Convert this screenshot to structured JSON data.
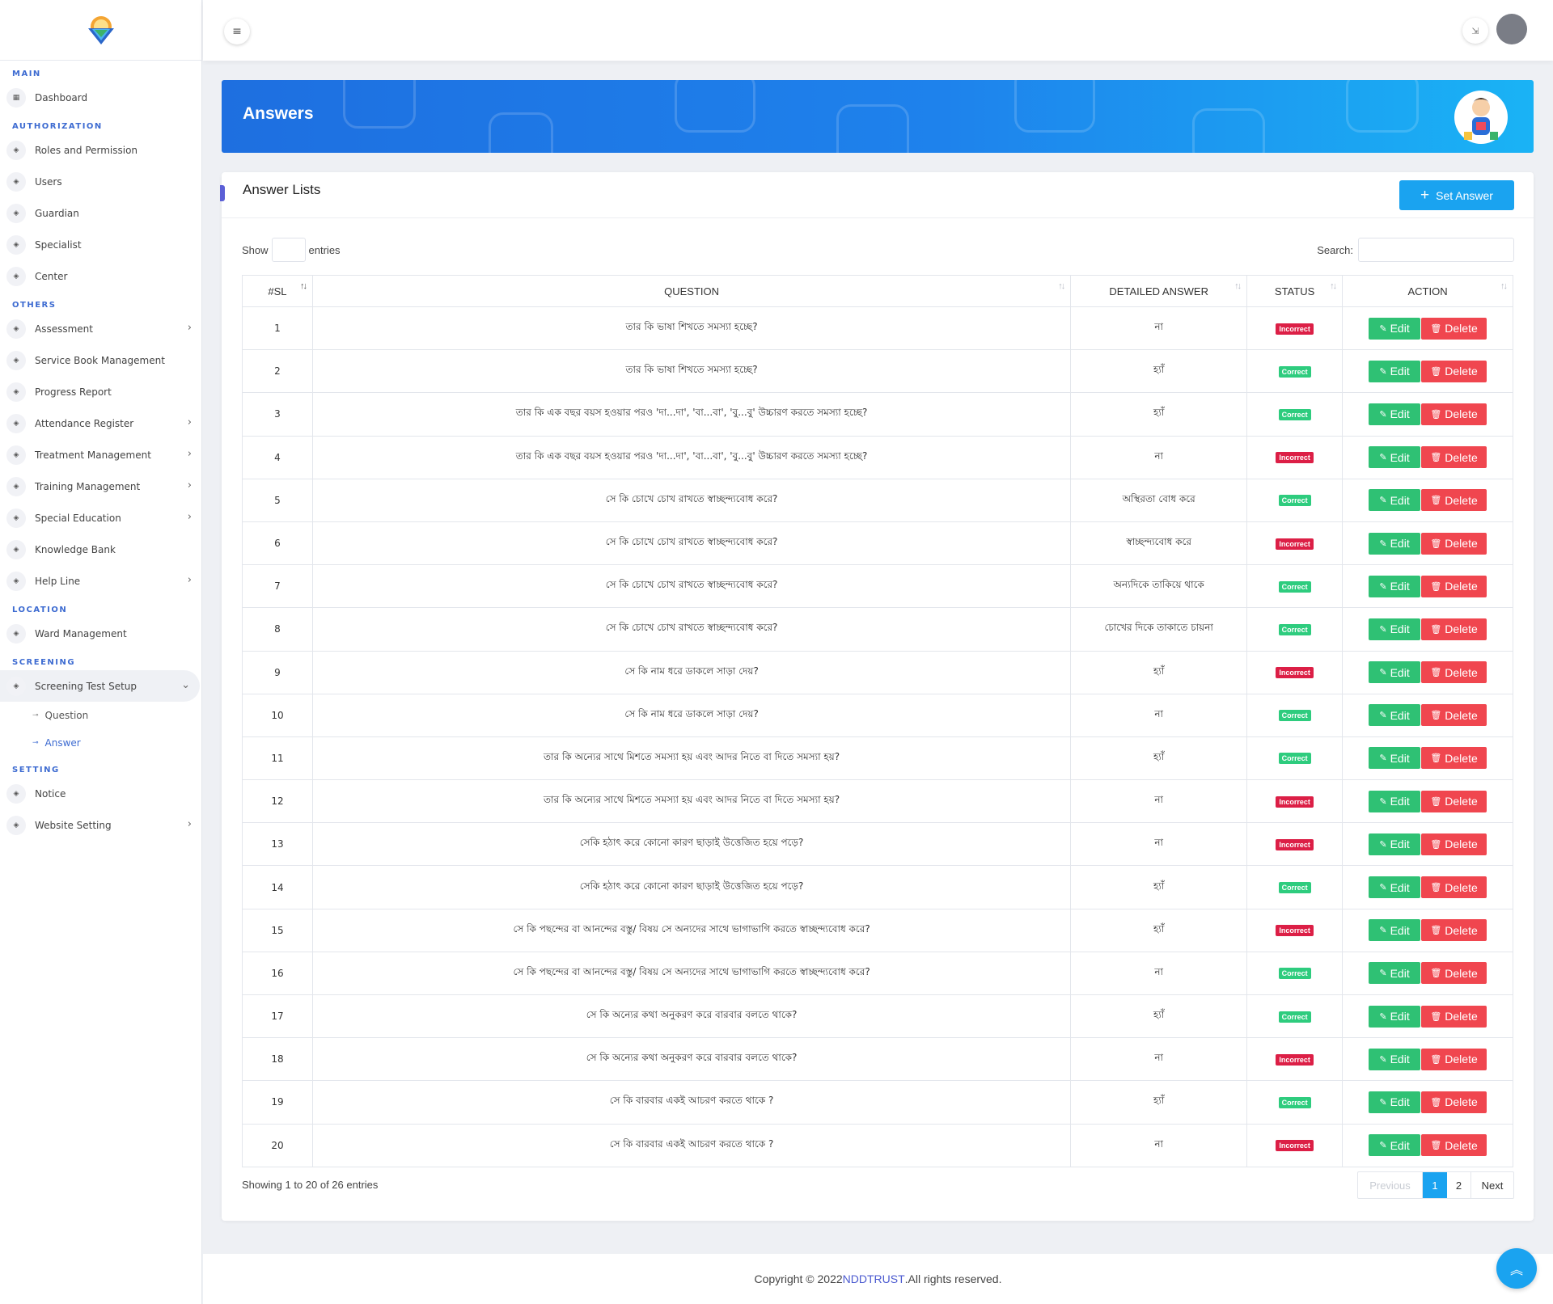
{
  "sidebar": {
    "sections": [
      {
        "title": "MAIN",
        "items": [
          {
            "label": "Dashboard",
            "icon": "grid-icon",
            "chevron": false
          }
        ]
      },
      {
        "title": "AUTHORIZATION",
        "items": [
          {
            "label": "Roles and Permission",
            "icon": "layers-icon",
            "chevron": false
          },
          {
            "label": "Users",
            "icon": "layers-icon",
            "chevron": false
          },
          {
            "label": "Guardian",
            "icon": "layers-icon",
            "chevron": false
          },
          {
            "label": "Specialist",
            "icon": "layers-icon",
            "chevron": false
          },
          {
            "label": "Center",
            "icon": "layers-icon",
            "chevron": false
          }
        ]
      },
      {
        "title": "OTHERS",
        "items": [
          {
            "label": "Assessment",
            "icon": "layers-icon",
            "chevron": true
          },
          {
            "label": "Service Book Management",
            "icon": "layers-icon",
            "chevron": false
          },
          {
            "label": "Progress Report",
            "icon": "layers-icon",
            "chevron": false
          },
          {
            "label": "Attendance Register",
            "icon": "layers-icon",
            "chevron": true
          },
          {
            "label": "Treatment Management",
            "icon": "layers-icon",
            "chevron": true
          },
          {
            "label": "Training Management",
            "icon": "layers-icon",
            "chevron": true
          },
          {
            "label": "Special Education",
            "icon": "layers-icon",
            "chevron": true
          },
          {
            "label": "Knowledge Bank",
            "icon": "layers-icon",
            "chevron": false
          },
          {
            "label": "Help Line",
            "icon": "layers-icon",
            "chevron": true
          }
        ]
      },
      {
        "title": "LOCATION",
        "items": [
          {
            "label": "Ward Management",
            "icon": "layers-icon",
            "chevron": false
          }
        ]
      },
      {
        "title": "SCREENING",
        "items": [
          {
            "label": "Screening Test Setup",
            "icon": "layers-icon",
            "chevron": true,
            "expanded": true,
            "active": true,
            "children": [
              {
                "label": "Question",
                "active": false
              },
              {
                "label": "Answer",
                "active": true
              }
            ]
          }
        ]
      },
      {
        "title": "SETTING",
        "items": [
          {
            "label": "Notice",
            "icon": "layers-icon",
            "chevron": false
          },
          {
            "label": "Website Setting",
            "icon": "layers-icon",
            "chevron": true
          }
        ]
      }
    ]
  },
  "banner": {
    "title": "Answers"
  },
  "card": {
    "title": "Answer Lists",
    "set_answer_label": "Set Answer",
    "show_label": "Show",
    "entries_label": "entries",
    "search_label": "Search:"
  },
  "table": {
    "headers": {
      "sl": "#SL",
      "question": "QUESTION",
      "answer": "DETAILED ANSWER",
      "status": "STATUS",
      "action": "ACTION"
    },
    "edit_label": "Edit",
    "delete_label": "Delete",
    "rows": [
      {
        "sl": "1",
        "question": "তার কি ভাষা শিখতে সমস্যা হচ্ছে?",
        "answer": "না",
        "status": "Incorrect"
      },
      {
        "sl": "2",
        "question": "তার কি ভাষা শিখতে সমস্যা হচ্ছে?",
        "answer": "হ্যাঁ",
        "status": "Correct"
      },
      {
        "sl": "3",
        "question": "তার কি এক বছর বয়স হওয়ার পরও 'দা...দা', 'বা...বা', 'বু...বু' উচ্চারণ করতে সমস্যা হচ্ছে?",
        "answer": "হ্যাঁ",
        "status": "Correct"
      },
      {
        "sl": "4",
        "question": "তার কি এক বছর বয়স হওয়ার পরও 'দা...দা', 'বা...বা', 'বু...বু' উচ্চারণ করতে সমস্যা হচ্ছে?",
        "answer": "না",
        "status": "Incorrect"
      },
      {
        "sl": "5",
        "question": "সে কি চোখে চোখ রাখতে স্বাচ্ছন্দ্যবোধ করে?",
        "answer": "অস্থিরতা বোধ করে",
        "status": "Correct"
      },
      {
        "sl": "6",
        "question": "সে কি চোখে চোখ রাখতে স্বাচ্ছন্দ্যবোধ করে?",
        "answer": "স্বাচ্ছন্দ্যবোধ করে",
        "status": "Incorrect"
      },
      {
        "sl": "7",
        "question": "সে কি চোখে চোখ রাখতে স্বাচ্ছন্দ্যবোধ করে?",
        "answer": "অন্যদিকে তাকিয়ে থাকে",
        "status": "Correct"
      },
      {
        "sl": "8",
        "question": "সে কি চোখে চোখ রাখতে স্বাচ্ছন্দ্যবোধ করে?",
        "answer": "চোখের দিকে তাকাতে চায়না",
        "status": "Correct"
      },
      {
        "sl": "9",
        "question": "সে কি নাম ধরে ডাকলে সাড়া দেয়?",
        "answer": "হ্যাঁ",
        "status": "Incorrect"
      },
      {
        "sl": "10",
        "question": "সে কি নাম ধরে ডাকলে সাড়া দেয়?",
        "answer": "না",
        "status": "Correct"
      },
      {
        "sl": "11",
        "question": "তার কি অন্যের সাথে মিশতে সমস্যা হয় এবং আদর নিতে বা দিতে সমস্যা হয়?",
        "answer": "হ্যাঁ",
        "status": "Correct"
      },
      {
        "sl": "12",
        "question": "তার কি অন্যের সাথে মিশতে সমস্যা হয় এবং আদর নিতে বা দিতে সমস্যা হয়?",
        "answer": "না",
        "status": "Incorrect"
      },
      {
        "sl": "13",
        "question": "সেকি হঠাৎ করে কোনো কারণ ছাড়াই উত্তেজিত হয়ে পড়ে?",
        "answer": "না",
        "status": "Incorrect"
      },
      {
        "sl": "14",
        "question": "সেকি হঠাৎ করে কোনো কারণ ছাড়াই উত্তেজিত হয়ে পড়ে?",
        "answer": "হ্যাঁ",
        "status": "Correct"
      },
      {
        "sl": "15",
        "question": "সে কি পছন্দের বা আনন্দের বস্তু/ বিষয় সে অন্যদের সাথে ভাগাভাগি করতে স্বাচ্ছন্দ্যবোধ করে?",
        "answer": "হ্যাঁ",
        "status": "Incorrect"
      },
      {
        "sl": "16",
        "question": "সে কি পছন্দের বা আনন্দের বস্তু/ বিষয় সে অন্যদের সাথে ভাগাভাগি করতে স্বাচ্ছন্দ্যবোধ করে?",
        "answer": "না",
        "status": "Correct"
      },
      {
        "sl": "17",
        "question": "সে কি অন্যের কথা অনুকরণ করে বারবার বলতে থাকে?",
        "answer": "হ্যাঁ",
        "status": "Correct"
      },
      {
        "sl": "18",
        "question": "সে কি অন্যের কথা অনুকরণ করে বারবার বলতে থাকে?",
        "answer": "না",
        "status": "Incorrect"
      },
      {
        "sl": "19",
        "question": "সে কি বারবার একই আচরণ করতে থাকে ?",
        "answer": "হ্যাঁ",
        "status": "Correct"
      },
      {
        "sl": "20",
        "question": "সে কি বারবার একই আচরণ করতে থাকে ?",
        "answer": "না",
        "status": "Incorrect"
      }
    ]
  },
  "footer_info": {
    "showing": "Showing 1 to 20 of 26 entries"
  },
  "pagination": {
    "previous": "Previous",
    "pages": [
      "1",
      "2"
    ],
    "current": "1",
    "next": "Next"
  },
  "footer": {
    "prefix": "Copyright © 2022 ",
    "brand": "NDDTRUST",
    "suffix": ".All rights reserved."
  },
  "colors": {
    "primary": "#1aa3f0",
    "correct": "#2ecc7e",
    "incorrect": "#dc1f46",
    "edit": "#2fc174",
    "delete": "#f0464f",
    "section": "#3d6bd1"
  }
}
